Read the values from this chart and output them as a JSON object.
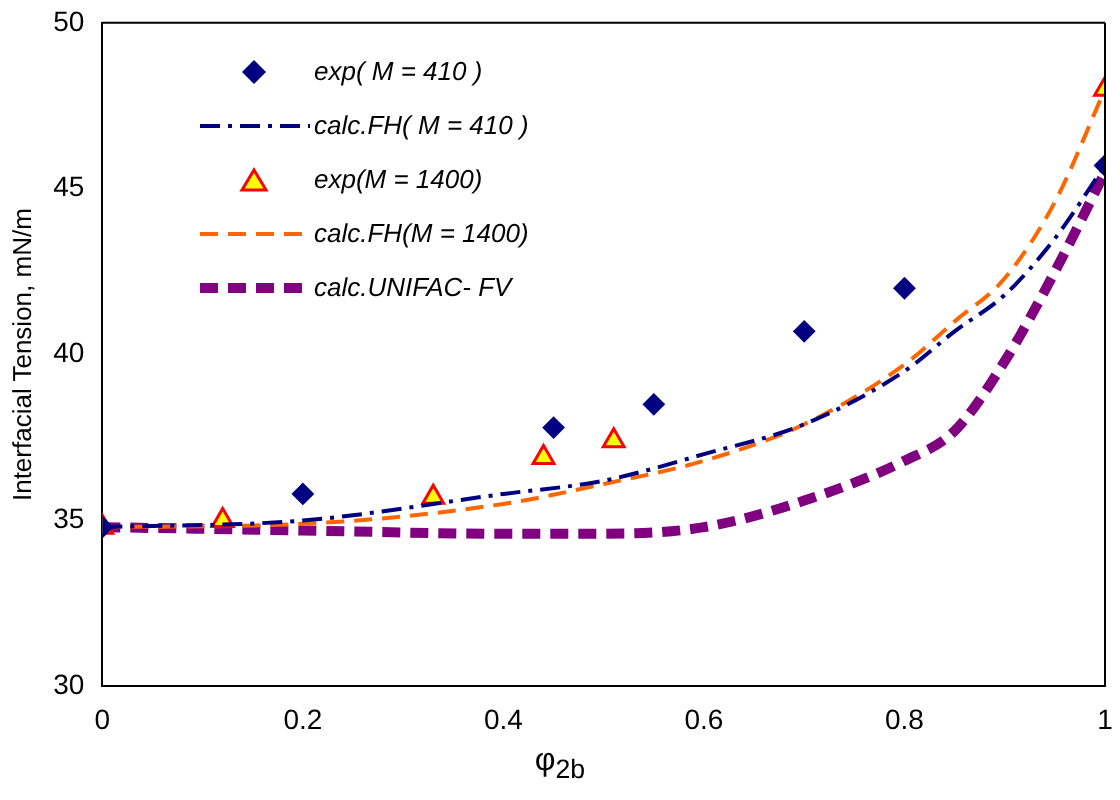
{
  "chart_data": {
    "type": "line",
    "xlabel": "φ$_{2b}$",
    "ylabel": "Interfacial Tension, mN/m",
    "xlim": [
      0,
      1
    ],
    "xticks": [
      0,
      0.2,
      0.4,
      0.6,
      0.8,
      1
    ],
    "ylim": [
      30,
      50
    ],
    "yticks": [
      30,
      35,
      40,
      45,
      50
    ],
    "grid": false,
    "legend": "top left",
    "series": [
      {
        "name": "exp( M = 410 )",
        "type": "scatter",
        "marker": "diamond",
        "color": "#000080",
        "x": [
          0,
          0.2,
          0.45,
          0.55,
          0.7,
          0.8,
          1
        ],
        "values": [
          34.8,
          35.8,
          37.8,
          38.5,
          40.7,
          42.0,
          45.7
        ]
      },
      {
        "name": "calc.FH( M = 410 )",
        "line_style": "dashdot",
        "color": "#000080",
        "x": [
          0,
          0.2,
          0.4,
          0.5,
          0.6,
          0.7,
          0.8,
          0.85,
          0.9,
          0.95,
          1
        ],
        "values": [
          34.8,
          35.0,
          35.8,
          36.2,
          37.0,
          37.9,
          39.5,
          40.7,
          41.8,
          43.5,
          45.7
        ]
      },
      {
        "name": "exp(M = 1400)",
        "type": "scatter",
        "marker": "triangle",
        "color": "#ffff00",
        "x": [
          0,
          0.12,
          0.33,
          0.44,
          0.51,
          1
        ],
        "values": [
          34.8,
          35.0,
          35.7,
          36.9,
          37.4,
          48.0
        ]
      },
      {
        "name": "calc.FH(M = 1400)",
        "line_style": "dashed",
        "color": "#ff6600",
        "x": [
          0,
          0.2,
          0.4,
          0.5,
          0.6,
          0.7,
          0.8,
          0.85,
          0.9,
          0.95,
          1
        ],
        "values": [
          34.8,
          34.9,
          35.5,
          36.1,
          36.8,
          37.9,
          39.7,
          41.0,
          42.3,
          44.6,
          48.0
        ]
      },
      {
        "name": "calc.UNIFAC- FV",
        "line_style": "dashed",
        "color": "#800080",
        "x": [
          0,
          0.2,
          0.4,
          0.5,
          0.6,
          0.7,
          0.8,
          0.85,
          0.9,
          0.95,
          1
        ],
        "values": [
          34.8,
          34.7,
          34.6,
          34.6,
          34.8,
          35.6,
          36.8,
          37.7,
          39.8,
          42.5,
          45.5
        ]
      }
    ]
  }
}
